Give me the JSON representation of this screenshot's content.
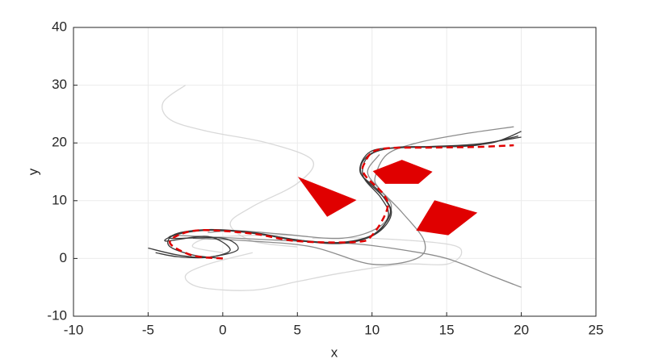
{
  "chart_data": {
    "type": "line",
    "xlabel": "x",
    "ylabel": "y",
    "xlim": [
      -10,
      25
    ],
    "ylim": [
      -10,
      40
    ],
    "xticks": [
      -10,
      -5,
      0,
      5,
      10,
      15,
      20,
      25
    ],
    "yticks": [
      -10,
      0,
      10,
      20,
      30,
      40
    ],
    "grid": true,
    "series": [
      {
        "style": "line",
        "color": "#d9d9d9",
        "x": [
          -2.5,
          -4,
          -3.5,
          -1,
          3,
          6,
          5,
          2,
          0.5,
          2,
          5
        ],
        "values": [
          30,
          27,
          24,
          22,
          20,
          17,
          13,
          9,
          6,
          3,
          2
        ]
      },
      {
        "style": "line",
        "color": "#d9d9d9",
        "x": [
          2,
          -1,
          -2.5,
          -1.5,
          2,
          5,
          8,
          12,
          15,
          16,
          15,
          10,
          6
        ],
        "values": [
          1,
          -1,
          -3,
          -5,
          -5.5,
          -4,
          -2.5,
          -1,
          -1,
          1,
          2.5,
          3.5,
          3.5
        ]
      },
      {
        "style": "line",
        "color": "#d9d9d9",
        "x": [
          0,
          -2,
          -1,
          2,
          5
        ],
        "values": [
          1,
          2,
          3.5,
          4,
          4
        ]
      },
      {
        "style": "line",
        "color": "#8c8c8c",
        "x": [
          -1,
          1,
          4,
          8,
          10.5,
          11.3,
          10.5,
          10.2,
          11,
          13,
          16,
          19.5
        ],
        "values": [
          4.5,
          4.8,
          4.2,
          3.5,
          5.5,
          9,
          12,
          14,
          18,
          20,
          21.5,
          22.8
        ]
      },
      {
        "style": "line",
        "color": "#8c8c8c",
        "x": [
          -2,
          2,
          6,
          10,
          13,
          13.5,
          12,
          10.5,
          9.7,
          10.5
        ],
        "values": [
          3.5,
          3,
          2,
          -1,
          0,
          3,
          8,
          12,
          15,
          18
        ]
      },
      {
        "style": "line",
        "color": "#8c8c8c",
        "x": [
          -3,
          1,
          5,
          9,
          12,
          15,
          18,
          20
        ],
        "values": [
          4,
          3.5,
          3,
          2.5,
          1.5,
          0,
          -3,
          -5
        ]
      },
      {
        "style": "line",
        "color": "#3a3a3a",
        "x": [
          -5,
          -3,
          -1,
          0.5,
          -1,
          -3.8,
          -3,
          -1,
          2,
          5,
          8,
          10,
          11.2,
          10.8,
          9.3,
          9.6,
          11,
          14,
          17,
          19.8
        ],
        "values": [
          1.8,
          0.6,
          0.2,
          1.5,
          3.8,
          3,
          4.2,
          4.9,
          4.4,
          3.1,
          2.6,
          4,
          7.5,
          10.5,
          14.5,
          17.5,
          19,
          19.3,
          19.6,
          21.2
        ]
      },
      {
        "style": "line",
        "color": "#3a3a3a",
        "x": [
          0,
          -2,
          -3.6,
          -3.2,
          -1,
          2,
          5,
          8,
          10.2,
          11.1,
          10.6,
          9.4,
          9.8,
          11.5,
          14,
          17,
          20
        ],
        "values": [
          0,
          0.6,
          2.2,
          4.2,
          5,
          4.5,
          3.2,
          2.8,
          4.3,
          7.5,
          10.5,
          14.3,
          17.8,
          19.2,
          19.4,
          19.8,
          21
        ]
      },
      {
        "style": "line",
        "color": "#3a3a3a",
        "x": [
          -4.5,
          -3,
          -1,
          1,
          0,
          -3.5,
          -2.5,
          0,
          3,
          6,
          8.5,
          10.4,
          11.3,
          10.4,
          9.2,
          9.9,
          12,
          15,
          18,
          20
        ],
        "values": [
          1,
          0.3,
          0.2,
          1.5,
          3.5,
          3.5,
          4.5,
          4.9,
          4,
          2.9,
          2.8,
          4.5,
          8,
          11.8,
          15,
          18.5,
          19.2,
          19.4,
          20,
          22
        ]
      },
      {
        "style": "dashed",
        "color": "#e00000",
        "x": [
          0,
          -2,
          -3.5,
          -3,
          -1.4,
          2,
          5,
          8.9,
          10,
          11,
          10.8,
          9.5,
          9.5,
          10.5,
          14,
          17,
          19.5
        ],
        "values": [
          0,
          0.5,
          2.5,
          4,
          4.9,
          4.3,
          3,
          2.85,
          4,
          8.4,
          11,
          14.5,
          16.5,
          18.9,
          19.2,
          19.3,
          19.6
        ]
      },
      {
        "style": "fill",
        "color": "#e00000",
        "x": [
          5.1,
          8.9,
          7
        ],
        "values": [
          14,
          10.1,
          7.3
        ]
      },
      {
        "style": "fill",
        "color": "#e00000",
        "x": [
          10.1,
          12,
          14,
          13.1,
          10.9
        ],
        "values": [
          15.1,
          17,
          15,
          13,
          13
        ]
      },
      {
        "style": "fill",
        "color": "#e00000",
        "x": [
          14.2,
          17,
          15.1,
          13
        ],
        "values": [
          10,
          7.9,
          4.1,
          4.9
        ]
      }
    ]
  }
}
